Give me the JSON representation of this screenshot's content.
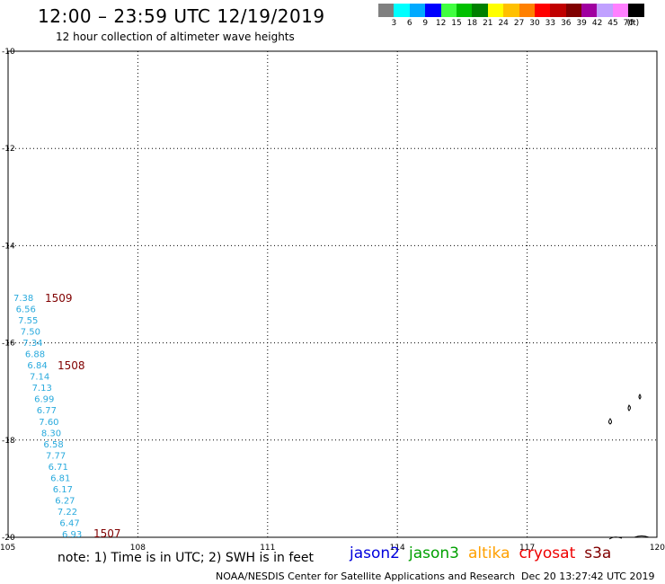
{
  "header": {
    "title": "12:00 – 23:59 UTC 12/19/2019",
    "subtitle": "12 hour collection of altimeter wave heights"
  },
  "scale": {
    "colors": [
      "#808080",
      "#00ffff",
      "#00aaff",
      "#0000ff",
      "#40ff40",
      "#00c000",
      "#008000",
      "#ffff00",
      "#ffc000",
      "#ff8000",
      "#ff0000",
      "#c00000",
      "#800000",
      "#a000a0",
      "#c0a0ff",
      "#ff80ff",
      "#000000"
    ],
    "labels": [
      "3",
      "6",
      "9",
      "12",
      "15",
      "18",
      "21",
      "24",
      "27",
      "30",
      "33",
      "36",
      "39",
      "42",
      "45",
      "70"
    ],
    "unit": "(ft)"
  },
  "map": {
    "lon_labels": [
      "105",
      "108",
      "111",
      "114",
      "117",
      "120"
    ],
    "lat_labels": [
      "-10",
      "-12",
      "-14",
      "-16",
      "-18",
      "-20"
    ],
    "tracks": [
      {
        "time": "1509",
        "color": "#800000"
      },
      {
        "time": "1508",
        "color": "#800000"
      },
      {
        "time": "1507",
        "color": "#800000"
      }
    ],
    "swh_color": "#29aadd",
    "swh_values": [
      "7.38",
      "6.56",
      "7.55",
      "7.50",
      "7.34",
      "6.88",
      "6.84",
      "7.14",
      "7.13",
      "6.99",
      "6.77",
      "7.60",
      "8.30",
      "6.58",
      "7.77",
      "6.71",
      "6.81",
      "6.17",
      "6.27",
      "7.22",
      "6.47",
      "6.93"
    ]
  },
  "footer": {
    "note": "note:  1) Time is in UTC;  2) SWH is in feet",
    "satellites": [
      {
        "name": "jason2",
        "color": "#0000dd"
      },
      {
        "name": "jason3",
        "color": "#00a000"
      },
      {
        "name": "altika",
        "color": "#ffa000"
      },
      {
        "name": "cryosat",
        "color": "#ee0000"
      },
      {
        "name": "s3a",
        "color": "#800000"
      }
    ],
    "credit": "NOAA/NESDIS Center for Satellite Applications and Research",
    "timestamp": "Dec 20 13:27:42 UTC 2019"
  }
}
